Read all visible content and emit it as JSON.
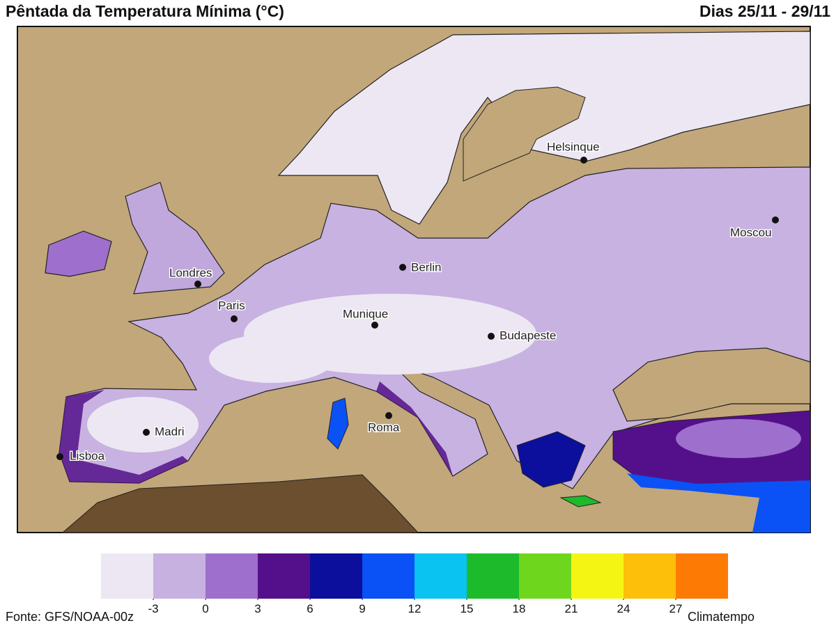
{
  "header": {
    "title": "Pêntada da Temperatura Mínima (°C)",
    "dates": "Dias 25/11 - 29/11"
  },
  "map": {
    "cities": [
      "Helsinque",
      "Moscou",
      "Londres",
      "Berlin",
      "Paris",
      "Munique",
      "Budapeste",
      "Madri",
      "Roma",
      "Lisboa"
    ]
  },
  "legend": {
    "colors": [
      "#ede7f4",
      "#c6b1e0",
      "#9e6fcc",
      "#54108a",
      "#0c0f9c",
      "#0a52f5",
      "#0ac3f0",
      "#1dbb2b",
      "#6fd61e",
      "#f5f514",
      "#fdbf0a",
      "#fd7a05"
    ],
    "ticks": [
      -3,
      0,
      3,
      6,
      9,
      12,
      15,
      18,
      21,
      24,
      27
    ]
  },
  "footer": {
    "source": "Fonte: GFS/NOAA-00z",
    "brand": "Climatempo"
  }
}
